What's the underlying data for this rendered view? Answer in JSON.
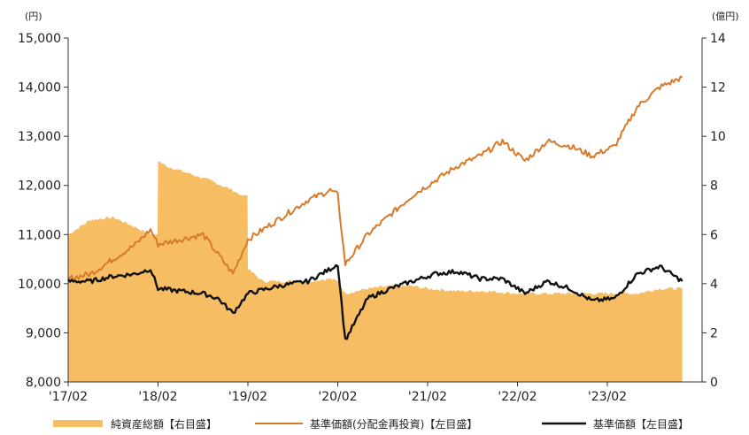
{
  "chart_data": {
    "type": "line",
    "title": "",
    "left_axis": {
      "unit": "(円)",
      "ylim": [
        8000,
        15000
      ],
      "ticks": [
        "8,000",
        "9,000",
        "10,000",
        "11,000",
        "12,000",
        "13,000",
        "14,000",
        "15,000"
      ]
    },
    "right_axis": {
      "unit": "(億円)",
      "ylim": [
        0,
        14
      ],
      "ticks": [
        "0",
        "2",
        "4",
        "6",
        "8",
        "10",
        "12",
        "14"
      ]
    },
    "x_axis": {
      "ticks": [
        "'17/02",
        "'18/02",
        "'19/02",
        "'20/02",
        "'21/02",
        "'22/02",
        "'23/02"
      ]
    },
    "legend_placement": "bottom",
    "colors": {
      "nav": "#f7bd63",
      "reinvested": "#d87a2a",
      "base": "#111111"
    },
    "series": [
      {
        "name": "純資産総額【右目盛】",
        "type": "area",
        "axis": "right",
        "x": [
          "2017-02",
          "2017-05",
          "2017-08",
          "2017-11",
          "2018-01",
          "2018-02",
          "2018-03",
          "2018-06",
          "2018-09",
          "2018-12",
          "2019-01",
          "2019-02",
          "2019-04",
          "2019-07",
          "2019-10",
          "2020-01",
          "2020-02",
          "2020-03",
          "2020-06",
          "2020-09",
          "2020-12",
          "2021-02",
          "2021-06",
          "2021-10",
          "2022-02",
          "2022-06",
          "2022-10",
          "2023-02",
          "2023-06",
          "2023-09",
          "2023-12"
        ],
        "values": [
          6.0,
          6.6,
          6.7,
          6.3,
          6.0,
          9.0,
          8.8,
          8.5,
          8.2,
          7.8,
          7.6,
          4.6,
          4.1,
          4.1,
          4.1,
          4.2,
          4.1,
          3.6,
          3.8,
          3.9,
          3.9,
          3.8,
          3.7,
          3.7,
          3.6,
          3.6,
          3.6,
          3.6,
          3.6,
          3.8,
          3.8
        ]
      },
      {
        "name": "基準価額(分配金再投資)【左目盛】",
        "type": "line",
        "axis": "left",
        "x": [
          "2017-02",
          "2017-05",
          "2017-08",
          "2017-11",
          "2018-01",
          "2018-02",
          "2018-05",
          "2018-08",
          "2018-10",
          "2018-12",
          "2019-02",
          "2019-06",
          "2019-10",
          "2020-01",
          "2020-02",
          "2020-03",
          "2020-06",
          "2020-09",
          "2020-12",
          "2021-03",
          "2021-06",
          "2021-09",
          "2021-12",
          "2022-03",
          "2022-06",
          "2022-09",
          "2022-12",
          "2023-03",
          "2023-06",
          "2023-09",
          "2023-12"
        ],
        "values": [
          10100,
          10200,
          10500,
          10800,
          11100,
          10800,
          10900,
          11000,
          10600,
          10200,
          10900,
          11300,
          11700,
          11900,
          11800,
          10400,
          11000,
          11400,
          11800,
          12100,
          12400,
          12600,
          12900,
          12500,
          12900,
          12800,
          12600,
          12800,
          13600,
          14000,
          14200
        ]
      },
      {
        "name": "基準価額【左目盛】",
        "type": "line",
        "axis": "left",
        "x": [
          "2017-02",
          "2017-05",
          "2017-08",
          "2017-11",
          "2018-01",
          "2018-02",
          "2018-05",
          "2018-08",
          "2018-10",
          "2018-12",
          "2019-02",
          "2019-06",
          "2019-10",
          "2020-01",
          "2020-02",
          "2020-03",
          "2020-06",
          "2020-09",
          "2020-12",
          "2021-03",
          "2021-06",
          "2021-09",
          "2021-12",
          "2022-03",
          "2022-06",
          "2022-09",
          "2022-12",
          "2023-03",
          "2023-06",
          "2023-09",
          "2023-12"
        ],
        "values": [
          10050,
          10050,
          10150,
          10200,
          10300,
          9900,
          9850,
          9800,
          9700,
          9400,
          9800,
          9950,
          10050,
          10300,
          10400,
          8850,
          9700,
          9900,
          10050,
          10200,
          10250,
          10100,
          10100,
          9800,
          10050,
          9900,
          9650,
          9700,
          10200,
          10350,
          10050
        ]
      }
    ]
  }
}
